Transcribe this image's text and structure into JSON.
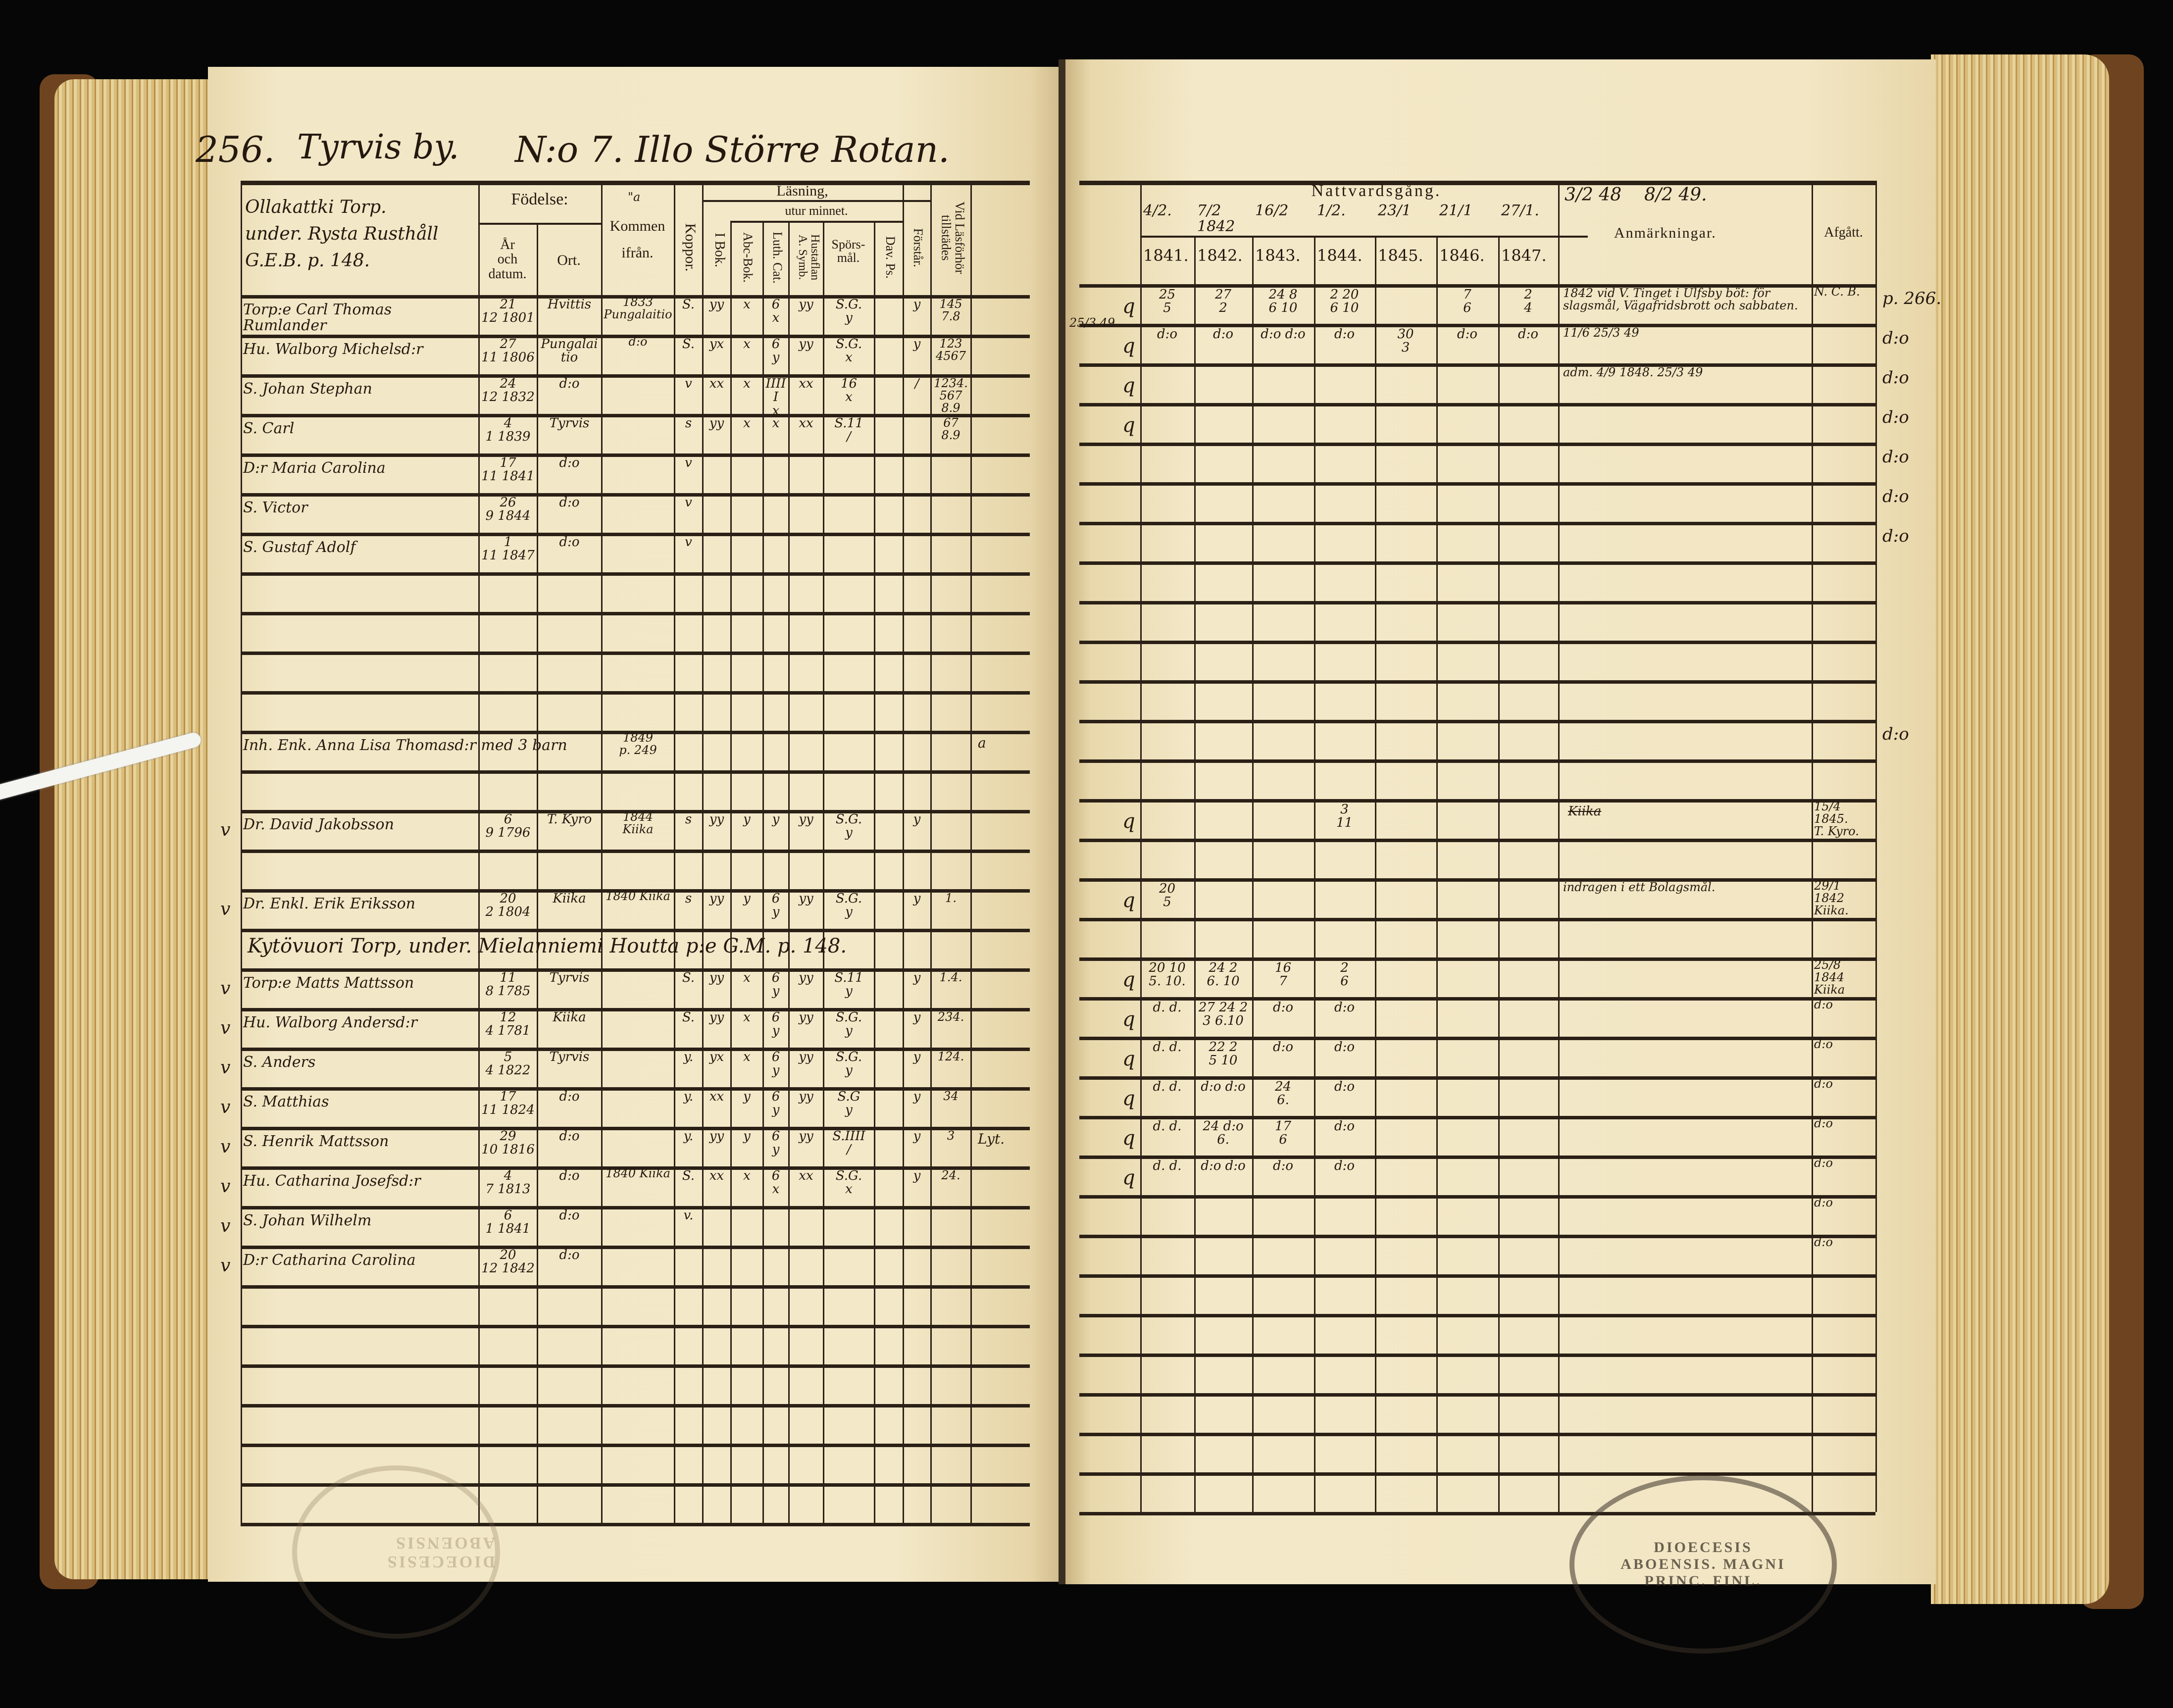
{
  "left_page": {
    "page_number": "256.",
    "village": "Tyrvis by.",
    "title": "N:o 7. Illo Större Rotan.",
    "columns": {
      "name_block": "Ollakattki Torp.\nunder. Rysta Rusthåll\nG.E.B. p. 148.",
      "fodelse": "Födelse:",
      "ar_och_datum": "År\noch\ndatum.",
      "ort": "Ort.",
      "kommen": "Kommen\nifrån.",
      "kommen_mark": "\"a",
      "koppor": "Koppor.",
      "lasning": "Läsning,",
      "utur_minnet": "utur minnet.",
      "i_bok": "I Bok.",
      "abc_bok": "Abc-Bok.",
      "luth_cat": "Luth. Cat.",
      "hustaflan": "Hustaflan\nA. Symb.",
      "sporsmal": "Spörs-\nmål.",
      "dav_ps": "Dav. Ps.",
      "forstar": "Förstår.",
      "vid_lasforhor": "Vid Läsförhör\ntillstädes"
    },
    "section_heading": "Kytövuori Torp, under. Mielanniemi Houtta p:e G.M. p. 148.",
    "rows": [
      {
        "row": 0,
        "name": "Torp:e Carl Thomas Rumlander",
        "birth": "21\n12 1801",
        "ort": "Hvittis",
        "kommen": "1833 Pungalaitio",
        "koppor": "S.",
        "ibok": "yy",
        "abc": "x",
        "luth": "6\nx",
        "husf": "yy",
        "spors": "S.G.\ny",
        "forstar": "y",
        "vid": "145\n7.8"
      },
      {
        "row": 1,
        "name": "Hu. Walborg Michelsd:r",
        "birth": "27\n11 1806",
        "ort": "Pungalaitio",
        "kommen": "d:o",
        "koppor": "S.",
        "ibok": "yx",
        "abc": "x",
        "luth": "6\ny",
        "husf": "yy",
        "spors": "S.G.\nx",
        "forstar": "y",
        "vid": "123\n4567"
      },
      {
        "row": 2,
        "name": "S. Johan Stephan",
        "birth": "24\n12 1832",
        "ort": "d:o",
        "koppor": "v",
        "ibok": "xx",
        "abc": "x",
        "luth": "IIIII\nx",
        "husf": "xx",
        "spors": "16\nx",
        "forstar": "/",
        "vid": "1234.\n567 8.9"
      },
      {
        "row": 3,
        "name": "S. Carl",
        "birth": "4\n1 1839",
        "ort": "Tyrvis",
        "koppor": "s",
        "ibok": "yy",
        "abc": "x",
        "luth": "x",
        "husf": "xx",
        "spors": "S.11\n/",
        "vid": "67\n8.9"
      },
      {
        "row": 4,
        "name": "D:r Maria Carolina",
        "birth": "17\n11 1841",
        "ort": "d:o",
        "koppor": "v"
      },
      {
        "row": 5,
        "name": "S. Victor",
        "birth": "26\n9 1844",
        "ort": "d:o",
        "koppor": "v"
      },
      {
        "row": 6,
        "name": "S. Gustaf Adolf",
        "birth": "1\n11 1847",
        "ort": "d:o",
        "koppor": "v"
      },
      {
        "row": 11,
        "name": "Inh. Enk. Anna Lisa Thomasd:r med 3 barn",
        "kommen": "1849\np. 249",
        "beyond": "a"
      },
      {
        "row": 13,
        "check": "v",
        "name": "Dr. David Jakobsson",
        "birth": "6\n9 1796",
        "ort": "T. Kyro",
        "kommen": "1844\nKiika",
        "koppor": "s",
        "ibok": "yy",
        "abc": "y",
        "luth": "y",
        "husf": "yy",
        "spors": "S.G.\ny",
        "forstar": "y"
      },
      {
        "row": 15,
        "check": "v",
        "name": "Dr. Enkl. Erik Eriksson",
        "birth": "20\n2 1804",
        "ort": "Kiika",
        "kommen": "1840 Kiika",
        "koppor": "s",
        "ibok": "yy",
        "abc": "y",
        "luth": "6\ny",
        "husf": "yy",
        "spors": "S.G.\ny",
        "forstar": "y",
        "vid": "1."
      },
      {
        "row": 17,
        "check": "v",
        "name": "Torp:e Matts Mattsson",
        "birth": "11\n8 1785",
        "ort": "Tyrvis",
        "koppor": "S.",
        "ibok": "yy",
        "abc": "x",
        "luth": "6\ny",
        "husf": "yy",
        "spors": "S.11\ny",
        "forstar": "y",
        "vid": "1.4."
      },
      {
        "row": 18,
        "check": "v",
        "name": "Hu. Walborg Andersd:r",
        "birth": "12\n4 1781",
        "ort": "Kiika",
        "koppor": "S.",
        "ibok": "yy",
        "abc": "x",
        "luth": "6\ny",
        "husf": "yy",
        "spors": "S.G.\ny",
        "forstar": "y",
        "vid": "234."
      },
      {
        "row": 19,
        "check": "v",
        "name": "S. Anders",
        "birth": "5\n4 1822",
        "ort": "Tyrvis",
        "koppor": "y.",
        "ibok": "yx",
        "abc": "x",
        "luth": "6\ny",
        "husf": "yy",
        "spors": "S.G.\ny",
        "forstar": "y",
        "vid": "124."
      },
      {
        "row": 20,
        "check": "v",
        "name": "S. Matthias",
        "birth": "17\n11 1824",
        "ort": "d:o",
        "koppor": "y.",
        "ibok": "xx",
        "abc": "y",
        "luth": "6\ny",
        "husf": "yy",
        "spors": "S.G\ny",
        "forstar": "y",
        "vid": "34"
      },
      {
        "row": 21,
        "check": "v",
        "name": "S. Henrik Mattsson",
        "birth": "29\n10 1816",
        "ort": "d:o",
        "koppor": "y.",
        "ibok": "yy",
        "abc": "y",
        "luth": "6\ny",
        "husf": "yy",
        "spors": "S.IIII\n/",
        "forstar": "y",
        "vid": "3",
        "beyond": "Lyt."
      },
      {
        "row": 22,
        "check": "v",
        "name": "Hu. Catharina Josefsd:r",
        "birth": "4\n7 1813",
        "ort": "d:o",
        "kommen": "1840 Kiika",
        "koppor": "S.",
        "ibok": "xx",
        "abc": "x",
        "luth": "6\nx",
        "husf": "xx",
        "spors": "S.G.\nx",
        "forstar": "y",
        "vid": "24."
      },
      {
        "row": 23,
        "check": "v",
        "name": "S. Johan Wilhelm",
        "birth": "6\n1 1841",
        "ort": "d:o",
        "koppor": "v."
      },
      {
        "row": 24,
        "check": "v",
        "name": "D:r Catharina Carolina",
        "birth": "20\n12 1842",
        "ort": "d:o"
      }
    ]
  },
  "right_page": {
    "columns": {
      "nattvardsgang": "Nattvardsgång.",
      "dates": [
        "4/2.",
        "7/2 1842",
        "16/2",
        "1/2.",
        "23/1",
        "21/1",
        "27/1."
      ],
      "anm_dates": "3/2 48    8/2 49.",
      "years": [
        "1841.",
        "1842.",
        "1843.",
        "1844.",
        "1845.",
        "1846.",
        "1847."
      ],
      "anmarkningar": "Anmärkningar.",
      "afgatt": "Afgått."
    },
    "rows": [
      {
        "row": 0,
        "mark": "q",
        "y1841": "25\n5",
        "y1842": "27\n2",
        "y1843": "24  8\n6  10",
        "y1844": "2  20\n6  10",
        "y1846": "7\n6",
        "y1847": "2\n4",
        "anm": "1842 vid V. Tinget i Ulfsby böt: för\nslagsmål, Vägafridsbrott och sabbaten.",
        "afg": "N. C. B.",
        "beyond": "p. 266."
      },
      {
        "row": 1,
        "mark": "q",
        "margin": "25/3 49",
        "y1841": "d:o",
        "y1842": "d:o",
        "y1843": "d:o  d:o",
        "y1844": "d:o",
        "y1845": "30\n3",
        "y1846": "d:o",
        "y1847": "d:o",
        "anm": "11/6  25/3 49",
        "beyond": "d:o"
      },
      {
        "row": 2,
        "mark": "q",
        "anm": "adm. 4/9 1848. 25/3 49",
        "beyond": "d:o"
      },
      {
        "row": 3,
        "mark": "q",
        "beyond": "d:o"
      },
      {
        "row": 4,
        "beyond": "d:o"
      },
      {
        "row": 5,
        "beyond": "d:o"
      },
      {
        "row": 6,
        "beyond": "d:o"
      },
      {
        "row": 11,
        "beyond": "d:o"
      },
      {
        "row": 13,
        "mark": "q",
        "y1844": "3\n11",
        "anm_struck": "Kiika",
        "afg": "15/4 1845.\nT. Kyro."
      },
      {
        "row": 15,
        "mark": "q",
        "y1841": "20\n5",
        "anm": "indragen i ett Bolagsmål.",
        "afg": "29/1 1842\nKiika."
      },
      {
        "row": 17,
        "mark": "q",
        "y1841": "20  10\n5.  10.",
        "y1842": "24  2\n6.  10",
        "y1843": "16\n7",
        "y1844": "2\n6",
        "afg": "25/8 1844\nKiika"
      },
      {
        "row": 18,
        "mark": "q",
        "y1841": "d. d.",
        "y1842": "27 24 2\n3  6.10",
        "y1843": "d:o",
        "y1844": "d:o",
        "afg": "d:o"
      },
      {
        "row": 19,
        "mark": "q",
        "y1841": "d. d.",
        "y1842": "22  2\n5  10",
        "y1843": "d:o",
        "y1844": "d:o",
        "afg": "d:o"
      },
      {
        "row": 20,
        "mark": "q",
        "y1841": "d. d.",
        "y1842": "d:o  d:o",
        "y1843": "24\n6.",
        "y1844": "d:o",
        "afg": "d:o"
      },
      {
        "row": 21,
        "mark": "q",
        "y1841": "d. d.",
        "y1842": "24  d:o\n6.",
        "y1843": "17\n6",
        "y1844": "d:o",
        "afg": "d:o"
      },
      {
        "row": 22,
        "mark": "q",
        "y1841": "d. d.",
        "y1842": "d:o  d:o",
        "y1843": "d:o",
        "y1844": "d:o",
        "afg": "d:o"
      },
      {
        "row": 23,
        "afg": "d:o"
      },
      {
        "row": 24,
        "afg": "d:o"
      }
    ]
  },
  "stamps": {
    "right": "DIOECESIS ABOENSIS. MAGNI PRINC. FINL.",
    "left_faint": "DIOECESIS ABOENSIS"
  },
  "colors": {
    "paper": "#f0e4c0",
    "ink": "#24190f",
    "cover": "#6e4420",
    "background": "#060606"
  }
}
